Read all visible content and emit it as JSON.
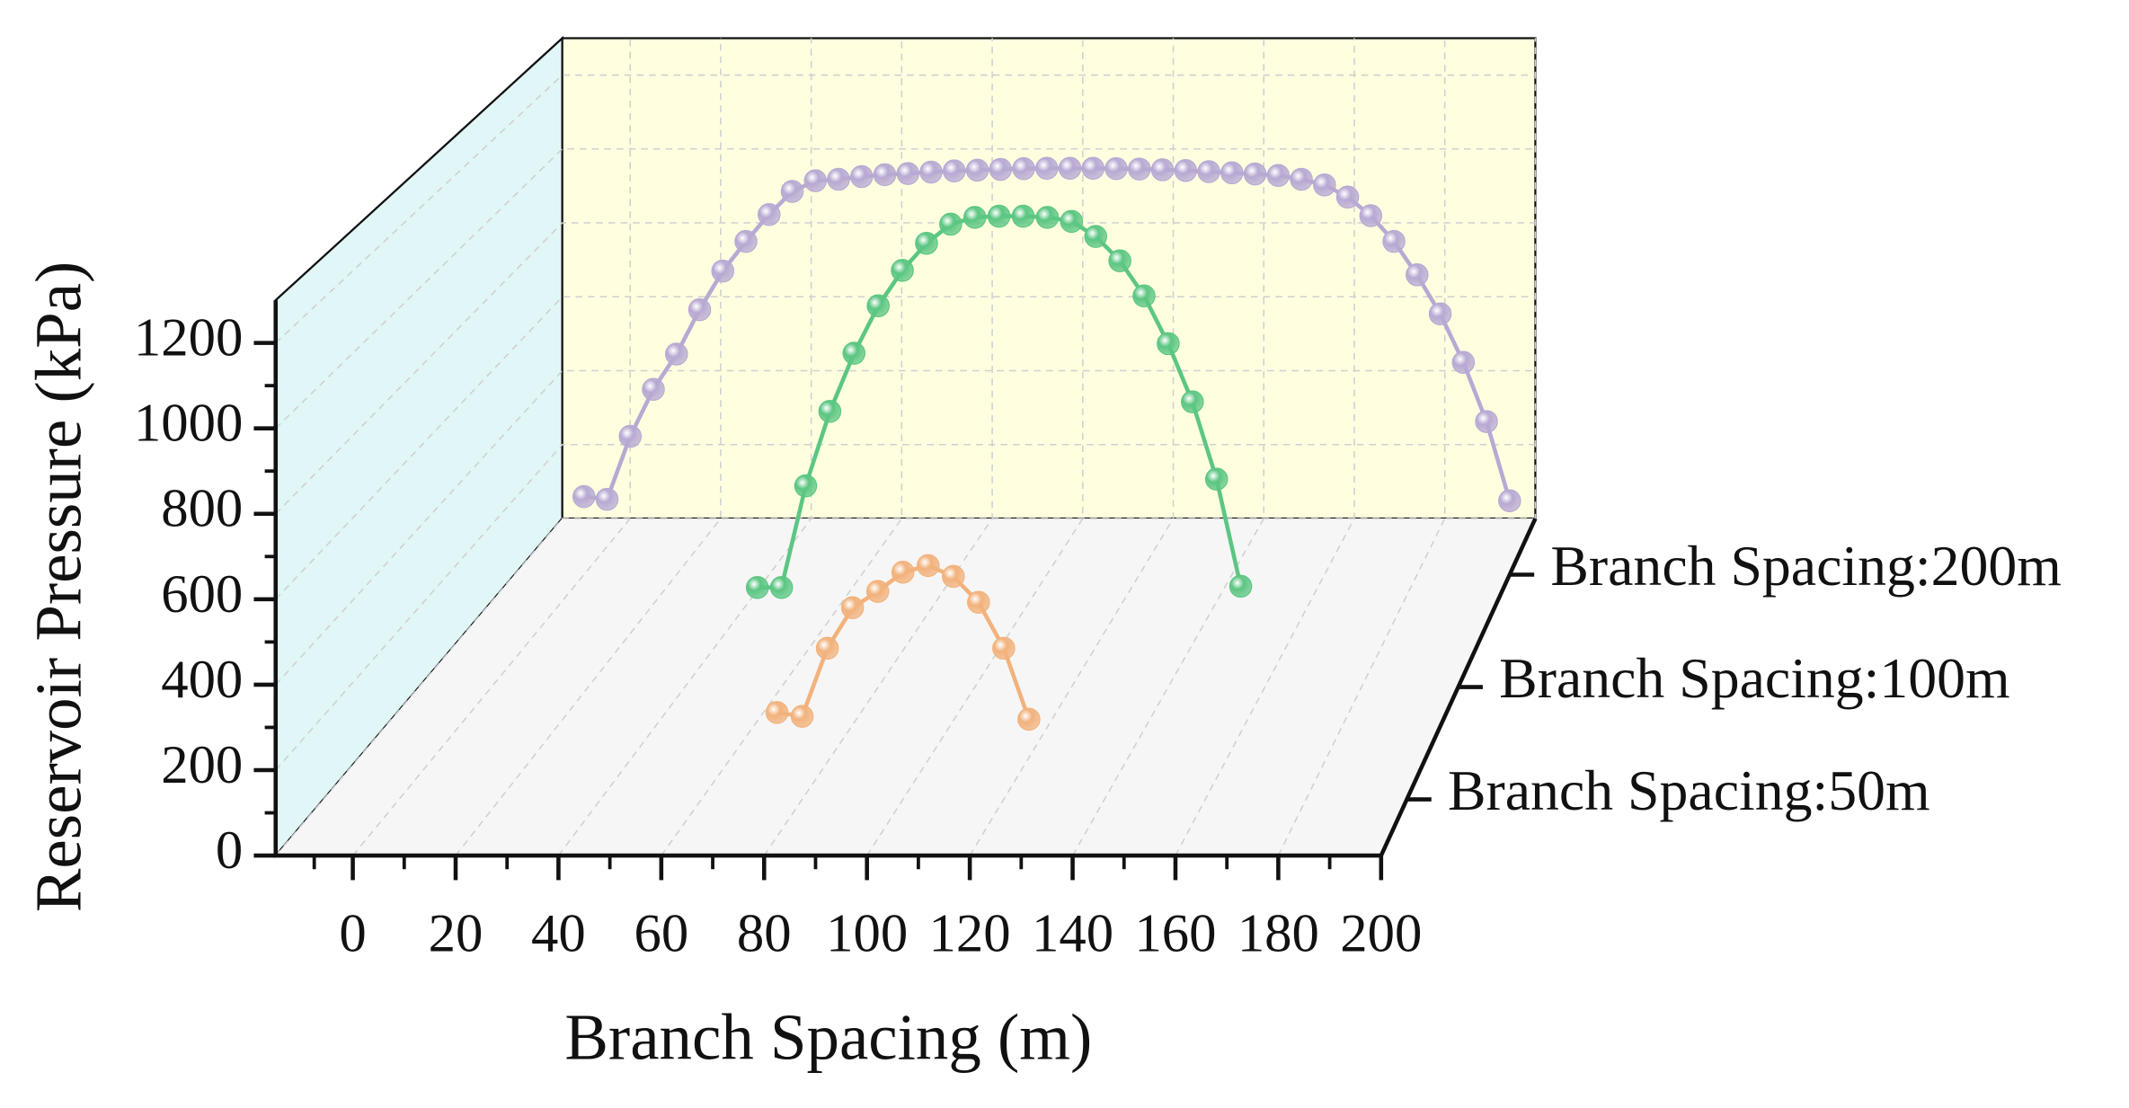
{
  "chart_data": {
    "type": "line3d",
    "xlabel": "Branch Spacing (m)",
    "ylabel": "Reservoir Pressure (kPa)",
    "xlim": [
      -15,
      200
    ],
    "ylim": [
      0,
      1300
    ],
    "xticks": [
      0,
      20,
      40,
      60,
      80,
      100,
      120,
      140,
      160,
      180,
      200
    ],
    "yticks": [
      0,
      200,
      400,
      600,
      800,
      1000,
      1200
    ],
    "grid": true,
    "series": [
      {
        "name": "Branch Spacing:50m",
        "color": "#f2b27c",
        "x": [
          75,
          80,
          85,
          90,
          95,
          100,
          105,
          110,
          115,
          120,
          125
        ],
        "values": [
          208,
          199,
          362,
          459,
          498,
          544,
          560,
          534,
          472,
          362,
          192
        ]
      },
      {
        "name": "Branch Spacing:100m",
        "color": "#5cc683",
        "x": [
          55,
          60,
          65,
          70,
          75,
          80,
          85,
          90,
          95,
          100,
          105,
          110,
          115,
          120,
          125,
          130,
          135,
          140,
          145,
          150,
          155
        ],
        "values": [
          250,
          250,
          505,
          692,
          838,
          957,
          1046,
          1114,
          1162,
          1179,
          1182,
          1182,
          1179,
          1169,
          1131,
          1070,
          982,
          862,
          716,
          522,
          253
        ]
      },
      {
        "name": "Branch Spacing:200m",
        "color": "#b8a9d3",
        "x": [
          0,
          5,
          10,
          15,
          20,
          25,
          30,
          35,
          40,
          45,
          50,
          55,
          60,
          65,
          70,
          75,
          80,
          85,
          90,
          95,
          100,
          105,
          110,
          115,
          120,
          125,
          130,
          135,
          140,
          145,
          150,
          155,
          160,
          165,
          170,
          175,
          180,
          185,
          190,
          195,
          200
        ],
        "values": [
          206,
          199,
          365,
          489,
          582,
          699,
          801,
          879,
          950,
          1011,
          1039,
          1043,
          1050,
          1055,
          1058,
          1062,
          1065,
          1067,
          1069,
          1071,
          1072,
          1072,
          1072,
          1071,
          1070,
          1068,
          1066,
          1063,
          1060,
          1057,
          1053,
          1043,
          1028,
          996,
          947,
          879,
          791,
          688,
          560,
          404,
          195
        ]
      }
    ]
  }
}
